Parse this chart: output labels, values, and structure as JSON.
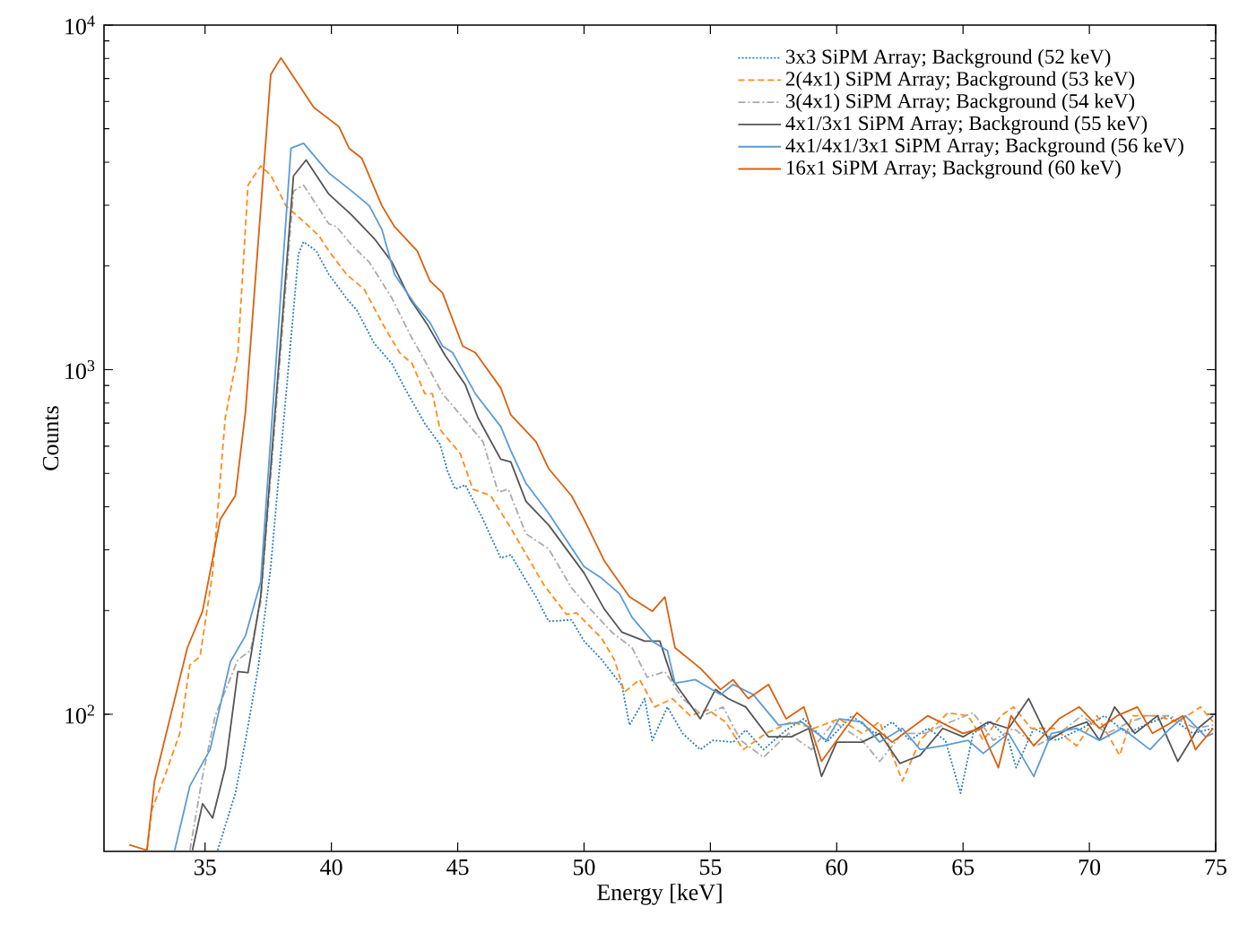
{
  "chart_data": {
    "type": "line",
    "xlabel": "Energy [keV]",
    "ylabel": "Counts",
    "log": "y",
    "legend": "top right",
    "grid": false,
    "xlim": [
      31,
      75
    ],
    "xticks": [
      35,
      40,
      45,
      50,
      55,
      60,
      65,
      70,
      75
    ],
    "ylim": [
      40,
      10000
    ],
    "yticks": [
      {
        "value": 100,
        "label": "10$^{2}$"
      },
      {
        "value": 1000,
        "label": "10$^{3}$"
      },
      {
        "value": 10000,
        "label": "10$^{4}$"
      }
    ],
    "series": [
      {
        "name": "3x3 SiPM Array; Background (52 keV)",
        "color": "#2a7fb8",
        "line_style": "dotted",
        "x": [
          35.5,
          36.2,
          36.6,
          37.1,
          37.6,
          38.7,
          38.9,
          39.4,
          39.9,
          40.6,
          41.0,
          41.7,
          42.4,
          42.9,
          43.7,
          44.3,
          44.6,
          44.9,
          45.3,
          46.0,
          46.7,
          47.1,
          48.1,
          48.6,
          49.5,
          50.0,
          50.7,
          51.5,
          51.8,
          52.4,
          52.7,
          53.3,
          53.9,
          54.6,
          55.1,
          55.9,
          56.4,
          57.1,
          58.0,
          58.7,
          59.6,
          60.6,
          61.5,
          62.2,
          62.9,
          63.6,
          64.3,
          64.9,
          65.4,
          66.1,
          66.8,
          67.1,
          67.8,
          68.7,
          69.7,
          70.6,
          71.5,
          72.2,
          73.1,
          74.1,
          74.9
        ],
        "values": [
          40.3,
          59,
          84,
          136,
          268,
          2170,
          2350,
          2210,
          1890,
          1610,
          1490,
          1190,
          1040,
          885,
          697,
          607,
          507,
          450,
          463,
          368,
          284,
          290,
          219,
          186,
          188,
          163,
          144,
          121,
          93,
          111,
          84,
          105,
          88,
          79,
          84,
          83,
          90,
          79,
          90,
          97,
          83,
          99,
          88,
          95,
          84,
          91,
          84,
          59,
          88,
          95,
          84,
          70,
          91,
          84,
          91,
          99,
          88,
          93,
          99,
          88,
          91
        ]
      },
      {
        "name": "2(4x1) SiPM Array; Background (53 keV)",
        "color": "#ff8c1a",
        "line_style": "dashed",
        "x": [
          32.7,
          32.9,
          33.4,
          34.0,
          34.4,
          34.8,
          35.3,
          35.8,
          36.3,
          36.7,
          37.2,
          37.6,
          38.2,
          39.0,
          39.5,
          39.9,
          40.6,
          41.3,
          42.0,
          42.7,
          43.2,
          43.7,
          44.0,
          44.3,
          45.1,
          45.6,
          46.3,
          47.1,
          48.4,
          49.3,
          49.7,
          50.0,
          50.7,
          51.2,
          51.6,
          52.2,
          52.8,
          53.5,
          54.2,
          54.9,
          55.6,
          56.3,
          57.2,
          58.2,
          59.1,
          60.1,
          61.0,
          61.7,
          62.6,
          63.3,
          64.4,
          65.2,
          65.8,
          66.5,
          67.0,
          67.7,
          68.6,
          69.5,
          70.3,
          71.2,
          71.7,
          72.6,
          73.5,
          74.4,
          74.9
        ],
        "values": [
          40.3,
          53,
          66,
          88,
          139,
          147,
          257,
          726,
          1120,
          3430,
          3900,
          3670,
          2990,
          2650,
          2450,
          2210,
          1890,
          1710,
          1370,
          1120,
          1040,
          851,
          851,
          670,
          571,
          450,
          431,
          347,
          238,
          195,
          197,
          187,
          166,
          144,
          116,
          126,
          105,
          111,
          99,
          103,
          95,
          79,
          88,
          95,
          91,
          97,
          88,
          95,
          64,
          84,
          101,
          99,
          84,
          99,
          105,
          91,
          91,
          81,
          99,
          76,
          99,
          99,
          95,
          105,
          95
        ]
      },
      {
        "name": "3(4x1) SiPM Array; Background (54 keV)",
        "color": "#aaaaaa",
        "line_style": "dashdot",
        "x": [
          34.4,
          34.9,
          35.4,
          36.3,
          36.8,
          37.2,
          38.5,
          38.9,
          39.9,
          40.2,
          40.8,
          41.5,
          42.4,
          43.1,
          43.7,
          44.4,
          45.2,
          46.0,
          46.6,
          47.0,
          47.7,
          48.6,
          49.5,
          50.0,
          51.1,
          51.9,
          52.5,
          53.2,
          53.9,
          54.7,
          55.5,
          56.2,
          57.1,
          58.1,
          59.0,
          59.9,
          61.0,
          61.7,
          62.6,
          63.5,
          64.2,
          65.4,
          66.2,
          67.0,
          67.9,
          68.8,
          69.7,
          70.7,
          71.6,
          72.3,
          73.2,
          74.2,
          74.9
        ],
        "values": [
          40.3,
          66,
          99,
          144,
          153,
          211,
          3300,
          3430,
          2650,
          2600,
          2300,
          2050,
          1610,
          1270,
          1060,
          851,
          726,
          618,
          441,
          450,
          334,
          302,
          233,
          211,
          173,
          156,
          128,
          133,
          111,
          99,
          105,
          84,
          75,
          88,
          79,
          95,
          84,
          73,
          88,
          88,
          93,
          101,
          84,
          91,
          81,
          88,
          99,
          88,
          95,
          99,
          99,
          91,
          93
        ]
      },
      {
        "name": "4x1/3x1 SiPM Array; Background (55 keV)",
        "color": "#555555",
        "line_style": "solid",
        "x": [
          34.5,
          34.9,
          35.3,
          35.8,
          36.3,
          36.7,
          37.2,
          38.5,
          39.0,
          39.9,
          40.8,
          41.7,
          42.4,
          43.1,
          43.8,
          44.5,
          45.3,
          45.8,
          46.7,
          47.1,
          47.7,
          48.6,
          50.0,
          50.8,
          51.5,
          52.4,
          53.0,
          53.5,
          54.6,
          55.2,
          55.7,
          56.4,
          57.3,
          58.2,
          58.9,
          59.4,
          60.0,
          61.0,
          61.7,
          62.5,
          63.3,
          64.2,
          65.0,
          66.0,
          66.8,
          67.6,
          68.4,
          69.2,
          69.9,
          70.4,
          71.0,
          71.8,
          72.7,
          73.5,
          74.3,
          74.9
        ],
        "values": [
          40.3,
          55,
          50,
          70,
          133,
          132,
          219,
          3650,
          4060,
          3230,
          2810,
          2400,
          2050,
          1610,
          1350,
          1100,
          904,
          726,
          550,
          540,
          415,
          354,
          257,
          202,
          173,
          163,
          163,
          126,
          97,
          118,
          111,
          105,
          86,
          86,
          91,
          66,
          83,
          83,
          88,
          72,
          76,
          91,
          86,
          95,
          91,
          111,
          84,
          91,
          95,
          84,
          105,
          88,
          99,
          73,
          91,
          99
        ]
      },
      {
        "name": "4x1/4x1/3x1 SiPM Array; Background (56 keV)",
        "color": "#5b9bd5",
        "line_style": "solid",
        "x": [
          33.8,
          34.4,
          35.2,
          36.0,
          36.6,
          37.2,
          38.4,
          38.9,
          39.9,
          40.8,
          41.5,
          42.0,
          42.5,
          43.3,
          43.9,
          44.4,
          44.8,
          45.7,
          46.7,
          47.1,
          47.7,
          48.6,
          50.0,
          50.7,
          51.4,
          51.9,
          52.7,
          53.3,
          53.6,
          54.4,
          55.4,
          55.9,
          56.7,
          57.7,
          58.6,
          59.6,
          60.1,
          61.0,
          61.7,
          62.6,
          63.3,
          64.2,
          65.2,
          65.8,
          66.8,
          67.8,
          68.5,
          69.5,
          70.4,
          71.3,
          72.4,
          73.2,
          73.8,
          74.6,
          74.9
        ],
        "values": [
          40.3,
          62,
          79,
          142,
          169,
          242,
          4390,
          4540,
          3720,
          3300,
          2990,
          2550,
          1890,
          1550,
          1370,
          1170,
          1120,
          851,
          684,
          582,
          468,
          383,
          268,
          248,
          224,
          191,
          163,
          153,
          123,
          126,
          114,
          122,
          114,
          93,
          95,
          84,
          97,
          95,
          83,
          91,
          79,
          81,
          84,
          77,
          88,
          66,
          88,
          91,
          84,
          91,
          79,
          91,
          99,
          86,
          88
        ]
      },
      {
        "name": "16x1 SiPM Array; Background (60 keV)",
        "color": "#d9600f",
        "line_style": "solid",
        "x": [
          32.0,
          32.7,
          33.0,
          34.3,
          34.9,
          35.6,
          36.2,
          36.6,
          37.6,
          38.0,
          39.3,
          40.3,
          40.7,
          41.2,
          42.0,
          42.5,
          43.4,
          43.9,
          44.4,
          45.2,
          45.7,
          46.7,
          47.1,
          48.1,
          48.6,
          49.5,
          50.0,
          50.8,
          51.8,
          52.7,
          53.2,
          53.6,
          54.6,
          55.4,
          55.9,
          56.5,
          57.3,
          58.0,
          58.7,
          59.4,
          60.8,
          62.2,
          63.6,
          65.0,
          65.7,
          66.4,
          66.9,
          67.8,
          68.8,
          69.6,
          70.4,
          71.1,
          71.9,
          72.5,
          73.7,
          74.2,
          74.9
        ],
        "values": [
          41.8,
          40.3,
          64,
          156,
          199,
          368,
          431,
          755,
          7180,
          8030,
          5770,
          5070,
          4390,
          4110,
          2990,
          2600,
          2210,
          1810,
          1670,
          1170,
          1120,
          885,
          740,
          618,
          516,
          431,
          368,
          279,
          219,
          199,
          219,
          156,
          136,
          118,
          126,
          111,
          122,
          97,
          105,
          73,
          101,
          83,
          99,
          88,
          91,
          70,
          99,
          81,
          97,
          105,
          91,
          99,
          105,
          88,
          99,
          79,
          91
        ]
      }
    ]
  }
}
